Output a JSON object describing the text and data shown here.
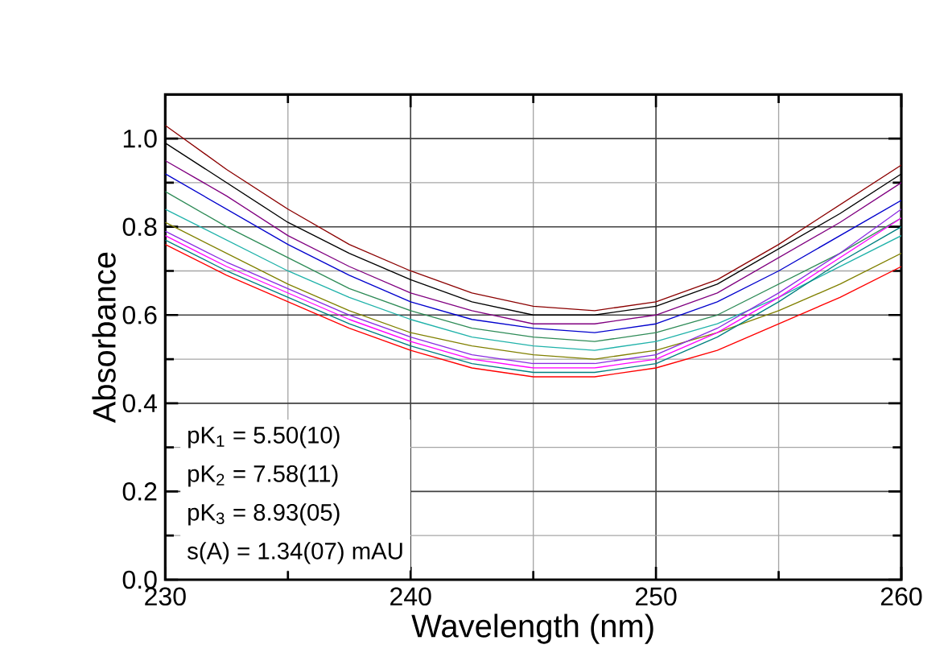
{
  "chart_data": {
    "type": "line",
    "xlabel": "Wavelength (nm)",
    "ylabel": "Absorbance",
    "x": [
      230,
      232.5,
      235,
      237.5,
      240,
      242.5,
      245,
      247.5,
      250,
      252.5,
      255,
      257.5,
      260
    ],
    "xlim": [
      230,
      260
    ],
    "ylim": [
      0,
      1.1
    ],
    "xticks": [
      230,
      240,
      250,
      260
    ],
    "yticks": [
      {
        "value": 0,
        "label": "0.0"
      },
      0.2,
      0.4,
      0.6,
      0.8,
      {
        "value": 1,
        "label": "1.0"
      }
    ],
    "grid": true,
    "marker": "none",
    "line_style": "solid",
    "series": [
      {
        "color": "#8b0000",
        "values": [
          1.03,
          0.93,
          0.84,
          0.76,
          0.7,
          0.65,
          0.62,
          0.61,
          0.63,
          0.68,
          0.76,
          0.85,
          0.94
        ]
      },
      {
        "color": "#000000",
        "values": [
          0.99,
          0.9,
          0.81,
          0.74,
          0.68,
          0.63,
          0.6,
          0.6,
          0.62,
          0.67,
          0.75,
          0.83,
          0.92
        ]
      },
      {
        "color": "#800080",
        "values": [
          0.95,
          0.87,
          0.78,
          0.71,
          0.65,
          0.61,
          0.58,
          0.58,
          0.6,
          0.65,
          0.73,
          0.81,
          0.9
        ]
      },
      {
        "color": "#0000cd",
        "values": [
          0.92,
          0.84,
          0.76,
          0.69,
          0.63,
          0.59,
          0.57,
          0.56,
          0.58,
          0.63,
          0.7,
          0.78,
          0.86
        ]
      },
      {
        "color": "#2e8b57",
        "values": [
          0.88,
          0.8,
          0.73,
          0.66,
          0.61,
          0.57,
          0.55,
          0.54,
          0.56,
          0.6,
          0.67,
          0.74,
          0.82
        ]
      },
      {
        "color": "#20b2aa",
        "values": [
          0.84,
          0.77,
          0.7,
          0.64,
          0.59,
          0.55,
          0.53,
          0.52,
          0.54,
          0.58,
          0.64,
          0.71,
          0.78
        ]
      },
      {
        "color": "#808000",
        "values": [
          0.81,
          0.74,
          0.67,
          0.61,
          0.56,
          0.53,
          0.51,
          0.5,
          0.52,
          0.56,
          0.61,
          0.67,
          0.74
        ]
      },
      {
        "color": "#8a2be2",
        "values": [
          0.79,
          0.72,
          0.66,
          0.6,
          0.55,
          0.51,
          0.49,
          0.49,
          0.51,
          0.57,
          0.65,
          0.74,
          0.84
        ]
      },
      {
        "color": "#ff00ff",
        "values": [
          0.78,
          0.71,
          0.65,
          0.59,
          0.54,
          0.5,
          0.48,
          0.48,
          0.5,
          0.56,
          0.64,
          0.73,
          0.82
        ]
      },
      {
        "color": "#008080",
        "values": [
          0.77,
          0.7,
          0.64,
          0.58,
          0.53,
          0.49,
          0.47,
          0.47,
          0.49,
          0.55,
          0.63,
          0.72,
          0.8
        ]
      },
      {
        "color": "#ff0000",
        "values": [
          0.76,
          0.69,
          0.63,
          0.57,
          0.52,
          0.48,
          0.46,
          0.46,
          0.48,
          0.52,
          0.58,
          0.64,
          0.71
        ]
      }
    ],
    "annotations": [
      "pK$_{1}$ = 5.50(10)",
      "pK$_{2}$ = 7.58(11)",
      "pK$_{3}$ = 8.93(05)",
      "s(A) = 1.34(07) mAU"
    ]
  }
}
